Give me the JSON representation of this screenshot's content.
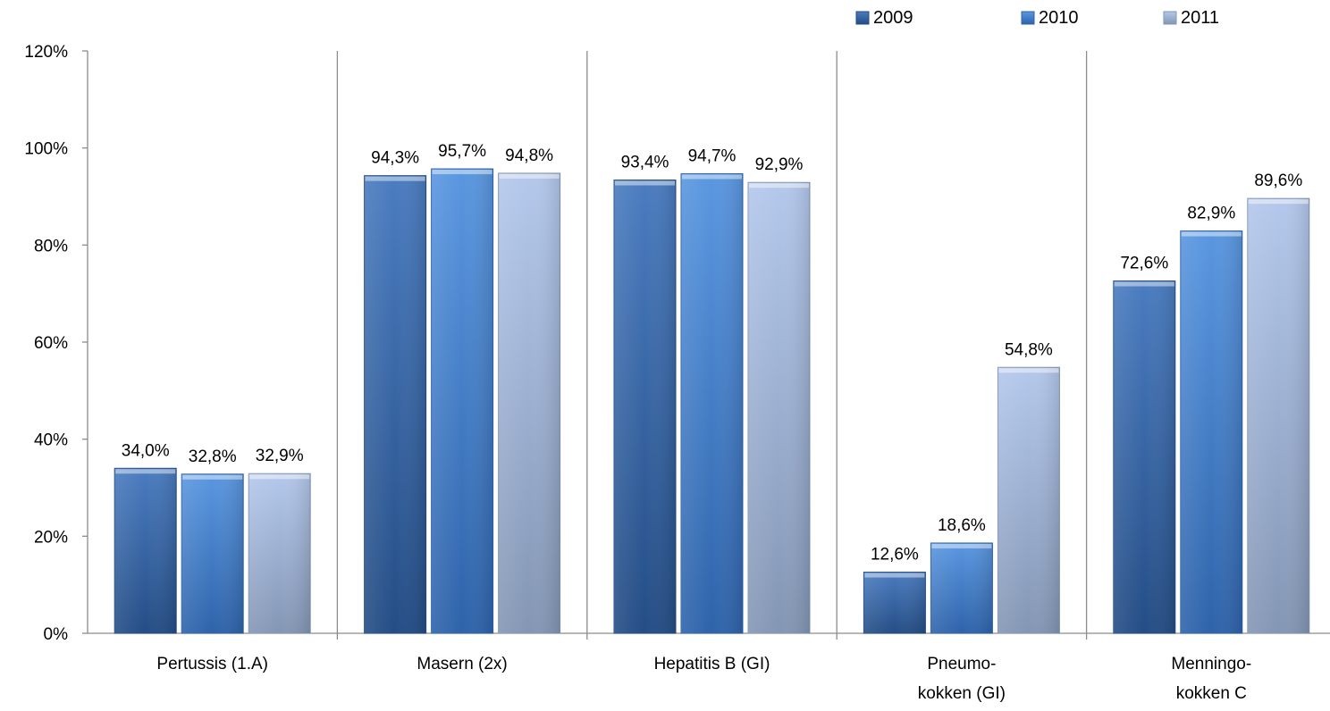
{
  "chart_data": {
    "type": "bar",
    "categories": [
      [
        "Pertussis (1.A)"
      ],
      [
        "Masern (2x)"
      ],
      [
        "Hepatitis B (GI)"
      ],
      [
        "Pneumo-",
        "kokken (GI)"
      ],
      [
        "Menningo-",
        "kokken C"
      ]
    ],
    "series": [
      {
        "name": "2009",
        "values": [
          34.0,
          94.3,
          93.4,
          12.6,
          72.6
        ],
        "labels": [
          "34,0%",
          "94,3%",
          "93,4%",
          "12,6%",
          "72,6%"
        ],
        "color_top": "#4a7cc0",
        "color_bottom": "#244d85"
      },
      {
        "name": "2010",
        "values": [
          32.8,
          95.7,
          94.7,
          18.6,
          82.9
        ],
        "labels": [
          "32,8%",
          "95,7%",
          "94,7%",
          "18,6%",
          "82,9%"
        ],
        "color_top": "#5a97e0",
        "color_bottom": "#2e63aa"
      },
      {
        "name": "2011",
        "values": [
          32.9,
          94.8,
          92.9,
          54.8,
          89.6
        ],
        "labels": [
          "32,9%",
          "94,8%",
          "92,9%",
          "54,8%",
          "89,6%"
        ],
        "color_top": "#b4c8ec",
        "color_bottom": "#8396b4"
      }
    ],
    "yticks": [
      "0%",
      "20%",
      "40%",
      "60%",
      "80%",
      "100%",
      "120%"
    ],
    "ylim": [
      0,
      120
    ],
    "grid": false,
    "legend_position": "top-right",
    "title": "",
    "xlabel": "",
    "ylabel": ""
  }
}
